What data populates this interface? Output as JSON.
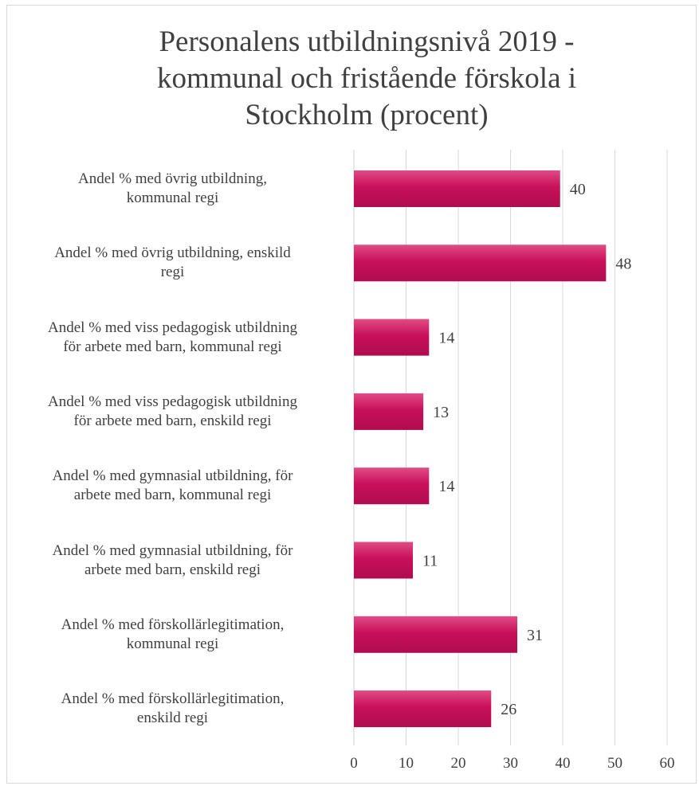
{
  "chart_data": {
    "type": "bar",
    "orientation": "horizontal",
    "title": "Personalens utbildningsnivå 2019 - kommunal och fristående förskola i Stockholm (procent)",
    "title_lines": [
      "Personalens utbildningsnivå 2019 -",
      "kommunal och fristående förskola i",
      "Stockholm (procent)"
    ],
    "categories": [
      [
        "Andel % med övrig utbildning,",
        "kommunal regi"
      ],
      [
        "Andel % med övrig utbildning, enskild",
        "regi"
      ],
      [
        "Andel % med viss pedagogisk utbildning",
        "för arbete med barn, kommunal regi"
      ],
      [
        "Andel % med viss pedagogisk utbildning",
        "för arbete med barn, enskild regi"
      ],
      [
        "Andel % med  gymnasial utbildning, för",
        "arbete med barn, kommunal regi"
      ],
      [
        "Andel % med gymnasial utbildning, för",
        "arbete med barn, enskild regi"
      ],
      [
        "Andel % med förskollärlegitimation,",
        "kommunal regi"
      ],
      [
        "Andel % med förskollärlegitimation,",
        "enskild regi"
      ]
    ],
    "values": [
      39.5,
      48.3,
      14.4,
      13.3,
      14.4,
      11.3,
      31.3,
      26.3
    ],
    "data_labels": [
      "40",
      "48",
      "14",
      "13",
      "14",
      "11",
      "31",
      "26"
    ],
    "xlim": [
      0,
      60
    ],
    "xticks": [
      "0",
      "10",
      "20",
      "30",
      "40",
      "50",
      "60"
    ],
    "xtick_values": [
      0,
      10,
      20,
      30,
      40,
      50,
      60
    ],
    "grid": true,
    "colors": {
      "bar": "#c8105a",
      "bar_highlight": "#e04c85",
      "grid": "#d9d9d9",
      "text": "#404040"
    }
  }
}
